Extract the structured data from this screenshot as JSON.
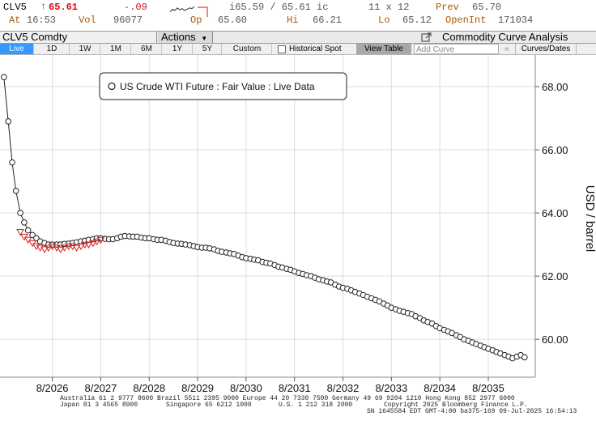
{
  "quote": {
    "ticker": "CLV5",
    "arrow": "↑",
    "last": "65.61",
    "change": "-.09",
    "bid_ask": "i65.59 / 65.61 ic",
    "size": "11 x 12",
    "prev_label": "Prev",
    "prev": "65.70",
    "at_label": "At",
    "at_time": "16:53",
    "vol_label": "Vol",
    "vol": "96077",
    "open_label": "Op",
    "open": "65.60",
    "high_label": "Hi",
    "high": "66.21",
    "low_label": "Lo",
    "low": "65.12",
    "oi_label": "OpenInt",
    "oi": "171034",
    "sparkline": [
      0.6,
      0.4,
      0.5,
      0.3,
      0.45,
      0.35,
      0.5,
      0.4,
      0.3,
      0.35,
      0.2
    ]
  },
  "toolbar": {
    "security": "CLV5 Comdty",
    "actions": "Actions",
    "app_title": "Commodity Curve Analysis"
  },
  "periods": {
    "buttons": [
      "Live",
      "1D",
      "1W",
      "1M",
      "6M",
      "1Y",
      "5Y",
      "Custom"
    ],
    "active": "Live",
    "historical_spot": "Historical Spot",
    "view_table": "View Table",
    "add_curve_placeholder": "Add Curve",
    "nav_back": "«",
    "curves_dates": "Curves/Dates"
  },
  "legend": {
    "label": "US Crude WTI Future : Fair Value : Live Data"
  },
  "footer": {
    "line1": "Australia 61 2 9777 8600 Brazil 5511 2395 9000 Europe 44 20 7330 7500 Germany 49 69 9204 1210 Hong Kong 852 2977 6000",
    "line2_left": "Japan 81 3 4565 8900",
    "line2_mid": "Singapore 65 6212 1000",
    "line2_right": "U.S. 1 212 318 2000",
    "copyright": "Copyright 2025 Bloomberg Finance L.P.",
    "sn": "SN 1645584 EDT  GMT-4:00 ba375-169 09-Jul-2025 16:54:13"
  },
  "colors": {
    "curve": "#222222",
    "fair_value": "#d42020",
    "grid": "#dddddd",
    "accent": "#3399ff"
  },
  "chart_data": {
    "type": "line",
    "title": "",
    "ylabel": "USD / barrel",
    "xlabel": "",
    "ylim": [
      58.8,
      69.0
    ],
    "yticks": [
      60,
      62,
      64,
      66,
      68
    ],
    "ytick_labels": [
      "60.00",
      "62.00",
      "64.00",
      "66.00",
      "68.00"
    ],
    "xlim": [
      2025.5,
      2036.55
    ],
    "xticks": [
      2026.58,
      2027.58,
      2028.58,
      2029.58,
      2030.58,
      2031.58,
      2032.58,
      2033.58,
      2034.58,
      2035.58
    ],
    "xtick_labels": [
      "8/2026",
      "8/2027",
      "8/2028",
      "8/2029",
      "8/2030",
      "8/2031",
      "8/2032",
      "8/2033",
      "8/2034",
      "8/2035"
    ],
    "grid": true,
    "legend_position": "top-left",
    "series": [
      {
        "name": "US Crude WTI Future : Live Data",
        "marker": "circle",
        "x": [
          2025.58,
          2025.67,
          2025.75,
          2025.83,
          2025.92,
          2026.0,
          2026.08,
          2026.17,
          2026.25,
          2026.33,
          2026.42,
          2026.5,
          2026.58,
          2026.67,
          2026.75,
          2026.83,
          2026.92,
          2027.0,
          2027.08,
          2027.17,
          2027.25,
          2027.33,
          2027.42,
          2027.5,
          2027.58,
          2027.67,
          2027.75,
          2027.83,
          2027.92,
          2028.0,
          2028.08,
          2028.17,
          2028.25,
          2028.33,
          2028.42,
          2028.5,
          2028.58,
          2028.67,
          2028.75,
          2028.83,
          2028.92,
          2029.0,
          2029.08,
          2029.17,
          2029.25,
          2029.33,
          2029.42,
          2029.5,
          2029.58,
          2029.67,
          2029.75,
          2029.83,
          2029.92,
          2030.0,
          2030.08,
          2030.17,
          2030.25,
          2030.33,
          2030.42,
          2030.5,
          2030.58,
          2030.67,
          2030.75,
          2030.83,
          2030.92,
          2031.0,
          2031.08,
          2031.17,
          2031.25,
          2031.33,
          2031.42,
          2031.5,
          2031.58,
          2031.67,
          2031.75,
          2031.83,
          2031.92,
          2032.0,
          2032.08,
          2032.17,
          2032.25,
          2032.33,
          2032.42,
          2032.5,
          2032.58,
          2032.67,
          2032.75,
          2032.83,
          2032.92,
          2033.0,
          2033.08,
          2033.17,
          2033.25,
          2033.33,
          2033.42,
          2033.5,
          2033.58,
          2033.67,
          2033.75,
          2033.83,
          2033.92,
          2034.0,
          2034.08,
          2034.17,
          2034.25,
          2034.33,
          2034.42,
          2034.5,
          2034.58,
          2034.67,
          2034.75,
          2034.83,
          2034.92,
          2035.0,
          2035.08,
          2035.17,
          2035.25,
          2035.33,
          2035.42,
          2035.5,
          2035.58,
          2035.67,
          2035.75,
          2035.83,
          2035.92,
          2036.0,
          2036.08,
          2036.17,
          2036.25,
          2036.33
        ],
        "y": [
          68.3,
          66.9,
          65.6,
          64.7,
          64.0,
          63.7,
          63.45,
          63.3,
          63.2,
          63.1,
          63.05,
          63.0,
          63.0,
          63.0,
          63.0,
          63.02,
          63.03,
          63.05,
          63.07,
          63.1,
          63.12,
          63.15,
          63.17,
          63.2,
          63.2,
          63.18,
          63.17,
          63.17,
          63.2,
          63.25,
          63.27,
          63.26,
          63.25,
          63.25,
          63.22,
          63.2,
          63.2,
          63.17,
          63.15,
          63.15,
          63.12,
          63.08,
          63.05,
          63.03,
          63.02,
          63.0,
          62.98,
          62.95,
          62.92,
          62.9,
          62.9,
          62.88,
          62.85,
          62.8,
          62.77,
          62.75,
          62.72,
          62.7,
          62.65,
          62.6,
          62.57,
          62.55,
          62.52,
          62.5,
          62.45,
          62.42,
          62.4,
          62.35,
          62.3,
          62.27,
          62.23,
          62.2,
          62.15,
          62.1,
          62.07,
          62.03,
          62.0,
          61.95,
          61.9,
          61.87,
          61.83,
          61.8,
          61.73,
          61.67,
          61.63,
          61.6,
          61.55,
          61.5,
          61.45,
          61.4,
          61.35,
          61.3,
          61.25,
          61.2,
          61.13,
          61.07,
          61.0,
          60.95,
          60.9,
          60.87,
          60.83,
          60.8,
          60.73,
          60.67,
          60.6,
          60.55,
          60.5,
          60.42,
          60.35,
          60.3,
          60.25,
          60.2,
          60.13,
          60.07,
          60.0,
          59.95,
          59.9,
          59.85,
          59.8,
          59.75,
          59.7,
          59.65,
          59.6,
          59.55,
          59.5,
          59.45,
          59.4,
          59.45,
          59.5,
          59.43
        ]
      },
      {
        "name": "Fair Value",
        "marker": "triangle-down",
        "x": [
          2025.92,
          2026.0,
          2026.08,
          2026.17,
          2026.25,
          2026.33,
          2026.42,
          2026.5,
          2026.58,
          2026.67,
          2026.75,
          2026.83,
          2026.92,
          2027.0,
          2027.08,
          2027.17,
          2027.25,
          2027.33,
          2027.42,
          2027.5,
          2027.58
        ],
        "y": [
          63.4,
          63.25,
          63.15,
          63.05,
          62.95,
          62.9,
          62.85,
          62.9,
          62.95,
          62.9,
          62.85,
          62.9,
          62.95,
          62.95,
          62.9,
          62.95,
          63.0,
          63.0,
          63.05,
          63.1,
          63.15
        ]
      }
    ]
  }
}
